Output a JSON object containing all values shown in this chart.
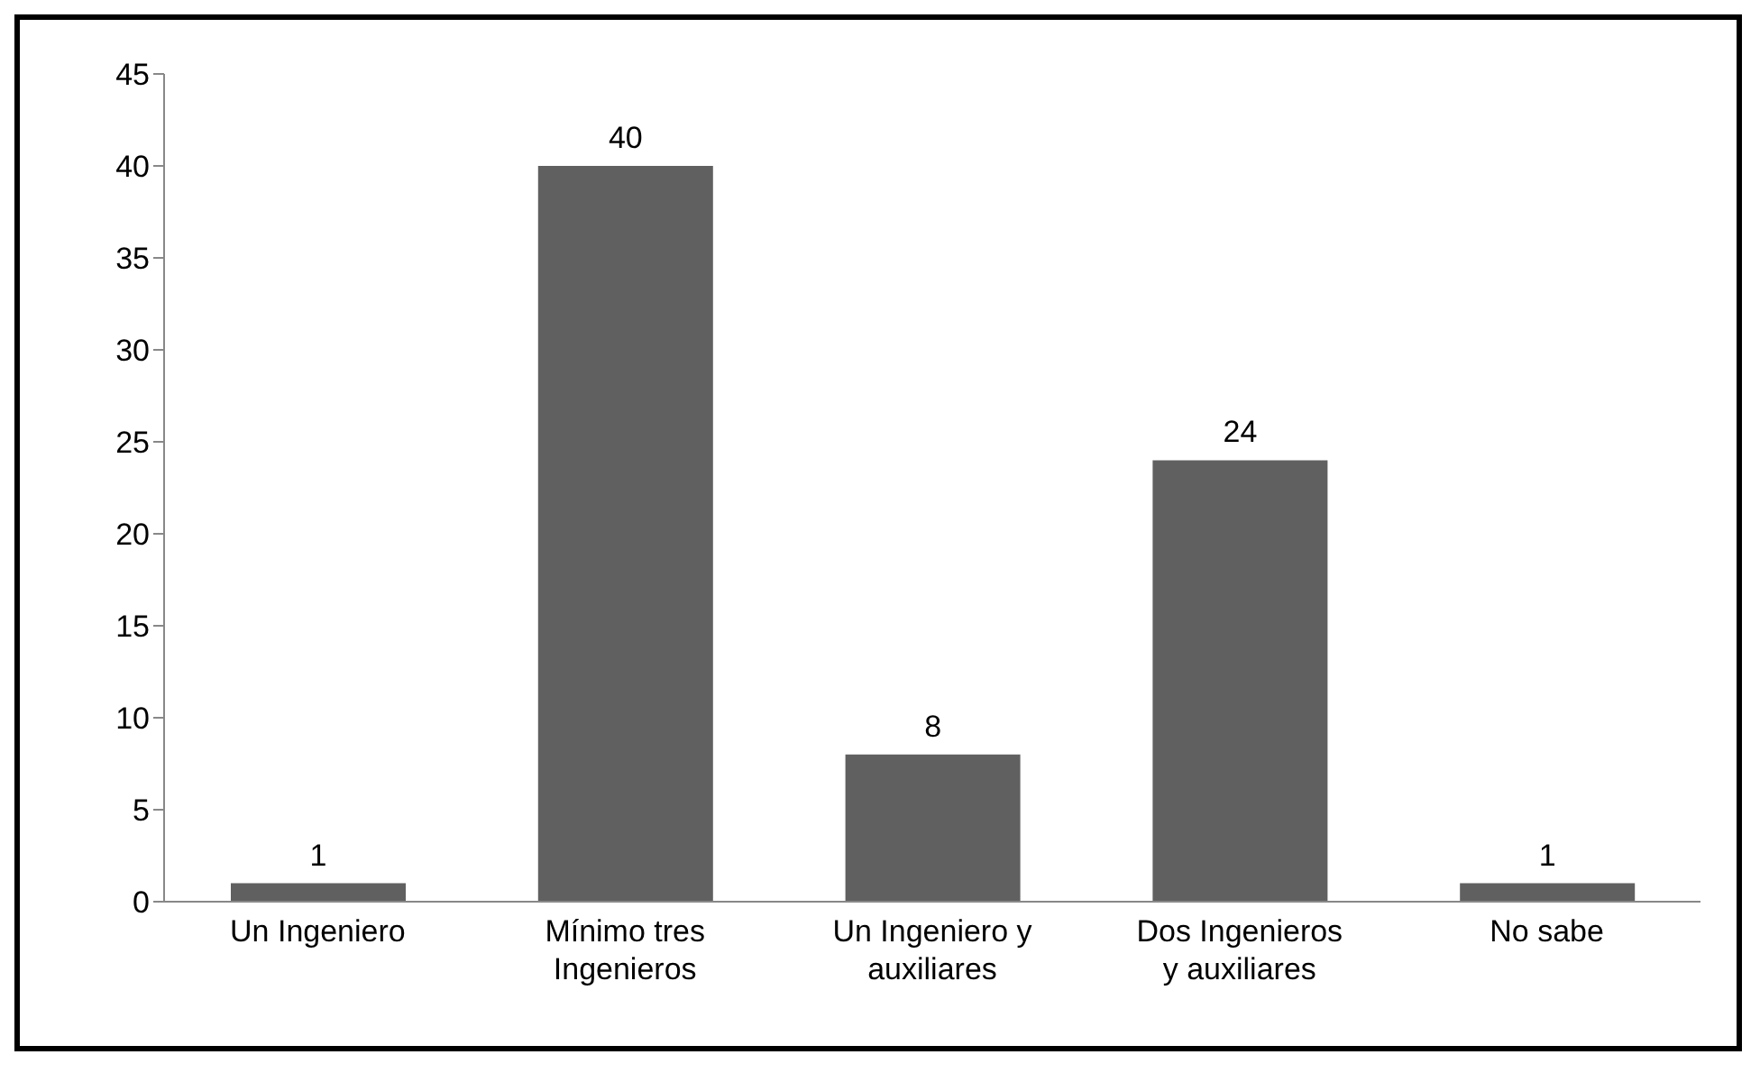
{
  "chart_data": {
    "type": "bar",
    "categories": [
      "Un Ingeniero",
      "Mínimo tres Ingenieros",
      "Un Ingeniero y auxiliares",
      "Dos Ingenieros y auxiliares",
      "No sabe"
    ],
    "values": [
      1,
      40,
      8,
      24,
      1
    ],
    "color": "#606060",
    "ylim": [
      0,
      45
    ],
    "yticks": [
      0,
      5,
      10,
      15,
      20,
      25,
      30,
      35,
      40,
      45
    ],
    "data_labels": true,
    "grid": false,
    "legend": false
  }
}
